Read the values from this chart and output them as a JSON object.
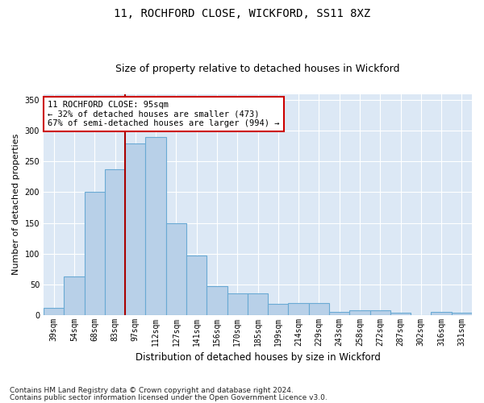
{
  "title1": "11, ROCHFORD CLOSE, WICKFORD, SS11 8XZ",
  "title2": "Size of property relative to detached houses in Wickford",
  "xlabel": "Distribution of detached houses by size in Wickford",
  "ylabel": "Number of detached properties",
  "categories": [
    "39sqm",
    "54sqm",
    "68sqm",
    "83sqm",
    "97sqm",
    "112sqm",
    "127sqm",
    "141sqm",
    "156sqm",
    "170sqm",
    "185sqm",
    "199sqm",
    "214sqm",
    "229sqm",
    "243sqm",
    "258sqm",
    "272sqm",
    "287sqm",
    "302sqm",
    "316sqm",
    "331sqm"
  ],
  "values": [
    11,
    63,
    200,
    238,
    280,
    290,
    150,
    97,
    47,
    35,
    35,
    18,
    19,
    19,
    5,
    8,
    7,
    4,
    0,
    5,
    3
  ],
  "bar_color": "#b8d0e8",
  "bar_edge_color": "#6aaad4",
  "vline_color": "#aa0000",
  "annotation_text": "11 ROCHFORD CLOSE: 95sqm\n← 32% of detached houses are smaller (473)\n67% of semi-detached houses are larger (994) →",
  "annotation_box_color": "#ffffff",
  "annotation_box_edge": "#cc0000",
  "footer1": "Contains HM Land Registry data © Crown copyright and database right 2024.",
  "footer2": "Contains public sector information licensed under the Open Government Licence v3.0.",
  "ylim": [
    0,
    360
  ],
  "fig_bg": "#ffffff",
  "plot_bg": "#dce8f5",
  "grid_color": "#ffffff",
  "title1_fontsize": 10,
  "title2_fontsize": 9,
  "xlabel_fontsize": 8.5,
  "ylabel_fontsize": 8,
  "tick_fontsize": 7,
  "footer_fontsize": 6.5,
  "annotation_fontsize": 7.5,
  "vline_index": 4
}
